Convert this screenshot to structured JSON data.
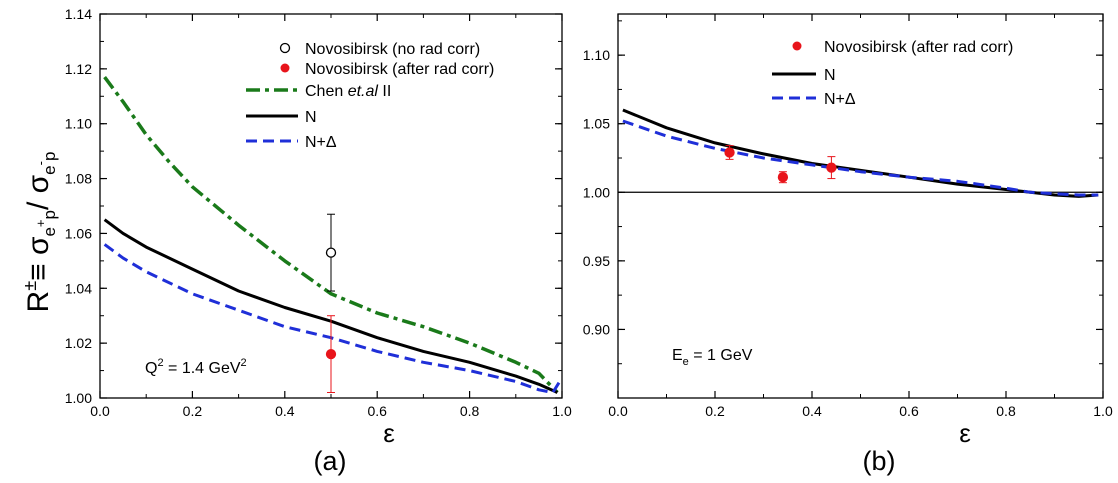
{
  "chart_data": [
    {
      "type": "line",
      "panel_label": "(a)",
      "xlabel": "ε",
      "ylabel": {
        "base": "R",
        "sup": "±",
        "rest": "≡ σ",
        "sub1": "e",
        "sub1sup": "+",
        "sub1tail": "p",
        "slash": "/ σ",
        "sub2": "e",
        "sub2sup": "-",
        "sub2tail": "p"
      },
      "xlim": [
        0,
        1
      ],
      "ylim": [
        1.0,
        1.14
      ],
      "xticks": [
        "0.0",
        "0.2",
        "0.4",
        "0.6",
        "0.8",
        "1.0"
      ],
      "yticks": [
        "1.00",
        "1.02",
        "1.04",
        "1.06",
        "1.08",
        "1.10",
        "1.12",
        "1.14"
      ],
      "annotation": {
        "text": "Q",
        "sup": "2",
        "rest": " = 1.4 GeV",
        "sup2": "2"
      },
      "legend_position": "top-right",
      "legend": [
        {
          "label": "Novosibirsk (no rad corr)",
          "marker": "open-circle"
        },
        {
          "label": "Novosibirsk (after rad corr)",
          "marker": "filled-circle"
        },
        {
          "label_parts": [
            "Chen ",
            "et.al",
            " II"
          ],
          "style": "dash-dot"
        },
        {
          "label": "N",
          "style": "solid"
        },
        {
          "label": "N+Δ",
          "style": "dashed"
        }
      ],
      "series": [
        {
          "name": "Chen et.al II",
          "color": "#1a7a1a",
          "style": "dash-dot",
          "x": [
            0.01,
            0.05,
            0.1,
            0.15,
            0.2,
            0.3,
            0.4,
            0.5,
            0.6,
            0.7,
            0.8,
            0.9,
            0.95,
            0.99
          ],
          "y": [
            1.117,
            1.108,
            1.096,
            1.086,
            1.077,
            1.063,
            1.05,
            1.038,
            1.031,
            1.026,
            1.02,
            1.013,
            1.009,
            1.002
          ]
        },
        {
          "name": "N",
          "color": "#000000",
          "style": "solid",
          "x": [
            0.01,
            0.05,
            0.1,
            0.2,
            0.3,
            0.4,
            0.5,
            0.6,
            0.7,
            0.8,
            0.9,
            0.95,
            0.99
          ],
          "y": [
            1.065,
            1.06,
            1.055,
            1.047,
            1.039,
            1.033,
            1.028,
            1.022,
            1.017,
            1.013,
            1.008,
            1.005,
            1.002
          ]
        },
        {
          "name": "N+Δ",
          "color": "#1f2fd8",
          "style": "dashed",
          "x": [
            0.01,
            0.05,
            0.1,
            0.2,
            0.3,
            0.4,
            0.5,
            0.6,
            0.7,
            0.8,
            0.9,
            0.95,
            0.98,
            0.995
          ],
          "y": [
            1.056,
            1.051,
            1.046,
            1.038,
            1.032,
            1.026,
            1.022,
            1.017,
            1.013,
            1.01,
            1.006,
            1.003,
            1.002,
            1.006
          ]
        }
      ],
      "points": [
        {
          "name": "Novosibirsk (no rad corr)",
          "x": 0.5,
          "y": 1.053,
          "err": 0.014,
          "fill": "#ffffff",
          "stroke": "#000000"
        },
        {
          "name": "Novosibirsk (after rad corr)",
          "x": 0.5,
          "y": 1.016,
          "err": 0.014,
          "fill": "#e8141b",
          "stroke": "#e8141b"
        }
      ]
    },
    {
      "type": "line",
      "panel_label": "(b)",
      "xlabel": "ε",
      "xlim": [
        0,
        1
      ],
      "ylim": [
        0.85,
        1.13
      ],
      "xticks": [
        "0.0",
        "0.2",
        "0.4",
        "0.6",
        "0.8",
        "1.0"
      ],
      "yticks": [
        "0.90",
        "0.95",
        "1.00",
        "1.05",
        "1.10"
      ],
      "reference_line": 1.0,
      "annotation": {
        "text": "E",
        "sub": "e",
        "rest": " = 1 GeV"
      },
      "legend_position": "top-right",
      "legend": [
        {
          "label": "Novosibirsk (after rad corr)",
          "marker": "filled-circle"
        },
        {
          "label": "N",
          "style": "solid"
        },
        {
          "label": "N+Δ",
          "style": "dashed"
        }
      ],
      "series": [
        {
          "name": "N",
          "color": "#000000",
          "style": "solid",
          "x": [
            0.01,
            0.1,
            0.2,
            0.3,
            0.4,
            0.5,
            0.6,
            0.7,
            0.8,
            0.85,
            0.9,
            0.95,
            0.99
          ],
          "y": [
            1.06,
            1.047,
            1.036,
            1.028,
            1.021,
            1.016,
            1.011,
            1.006,
            1.002,
            1.0,
            0.998,
            0.997,
            0.998
          ]
        },
        {
          "name": "N+Δ",
          "color": "#1f2fd8",
          "style": "dashed",
          "x": [
            0.01,
            0.1,
            0.2,
            0.3,
            0.4,
            0.5,
            0.6,
            0.7,
            0.8,
            0.85,
            0.9,
            0.95,
            0.99
          ],
          "y": [
            1.052,
            1.041,
            1.032,
            1.025,
            1.02,
            1.015,
            1.011,
            1.008,
            1.003,
            1.0,
            0.999,
            0.998,
            0.998
          ]
        }
      ],
      "points": [
        {
          "name": "Novosibirsk (after rad corr)",
          "x": 0.23,
          "y": 1.029,
          "err": 0.005,
          "fill": "#e8141b",
          "stroke": "#e8141b"
        },
        {
          "name": "Novosibirsk (after rad corr)",
          "x": 0.34,
          "y": 1.011,
          "err": 0.004,
          "fill": "#e8141b",
          "stroke": "#e8141b"
        },
        {
          "name": "Novosibirsk (after rad corr)",
          "x": 0.44,
          "y": 1.018,
          "err": 0.008,
          "fill": "#e8141b",
          "stroke": "#e8141b"
        }
      ]
    }
  ]
}
